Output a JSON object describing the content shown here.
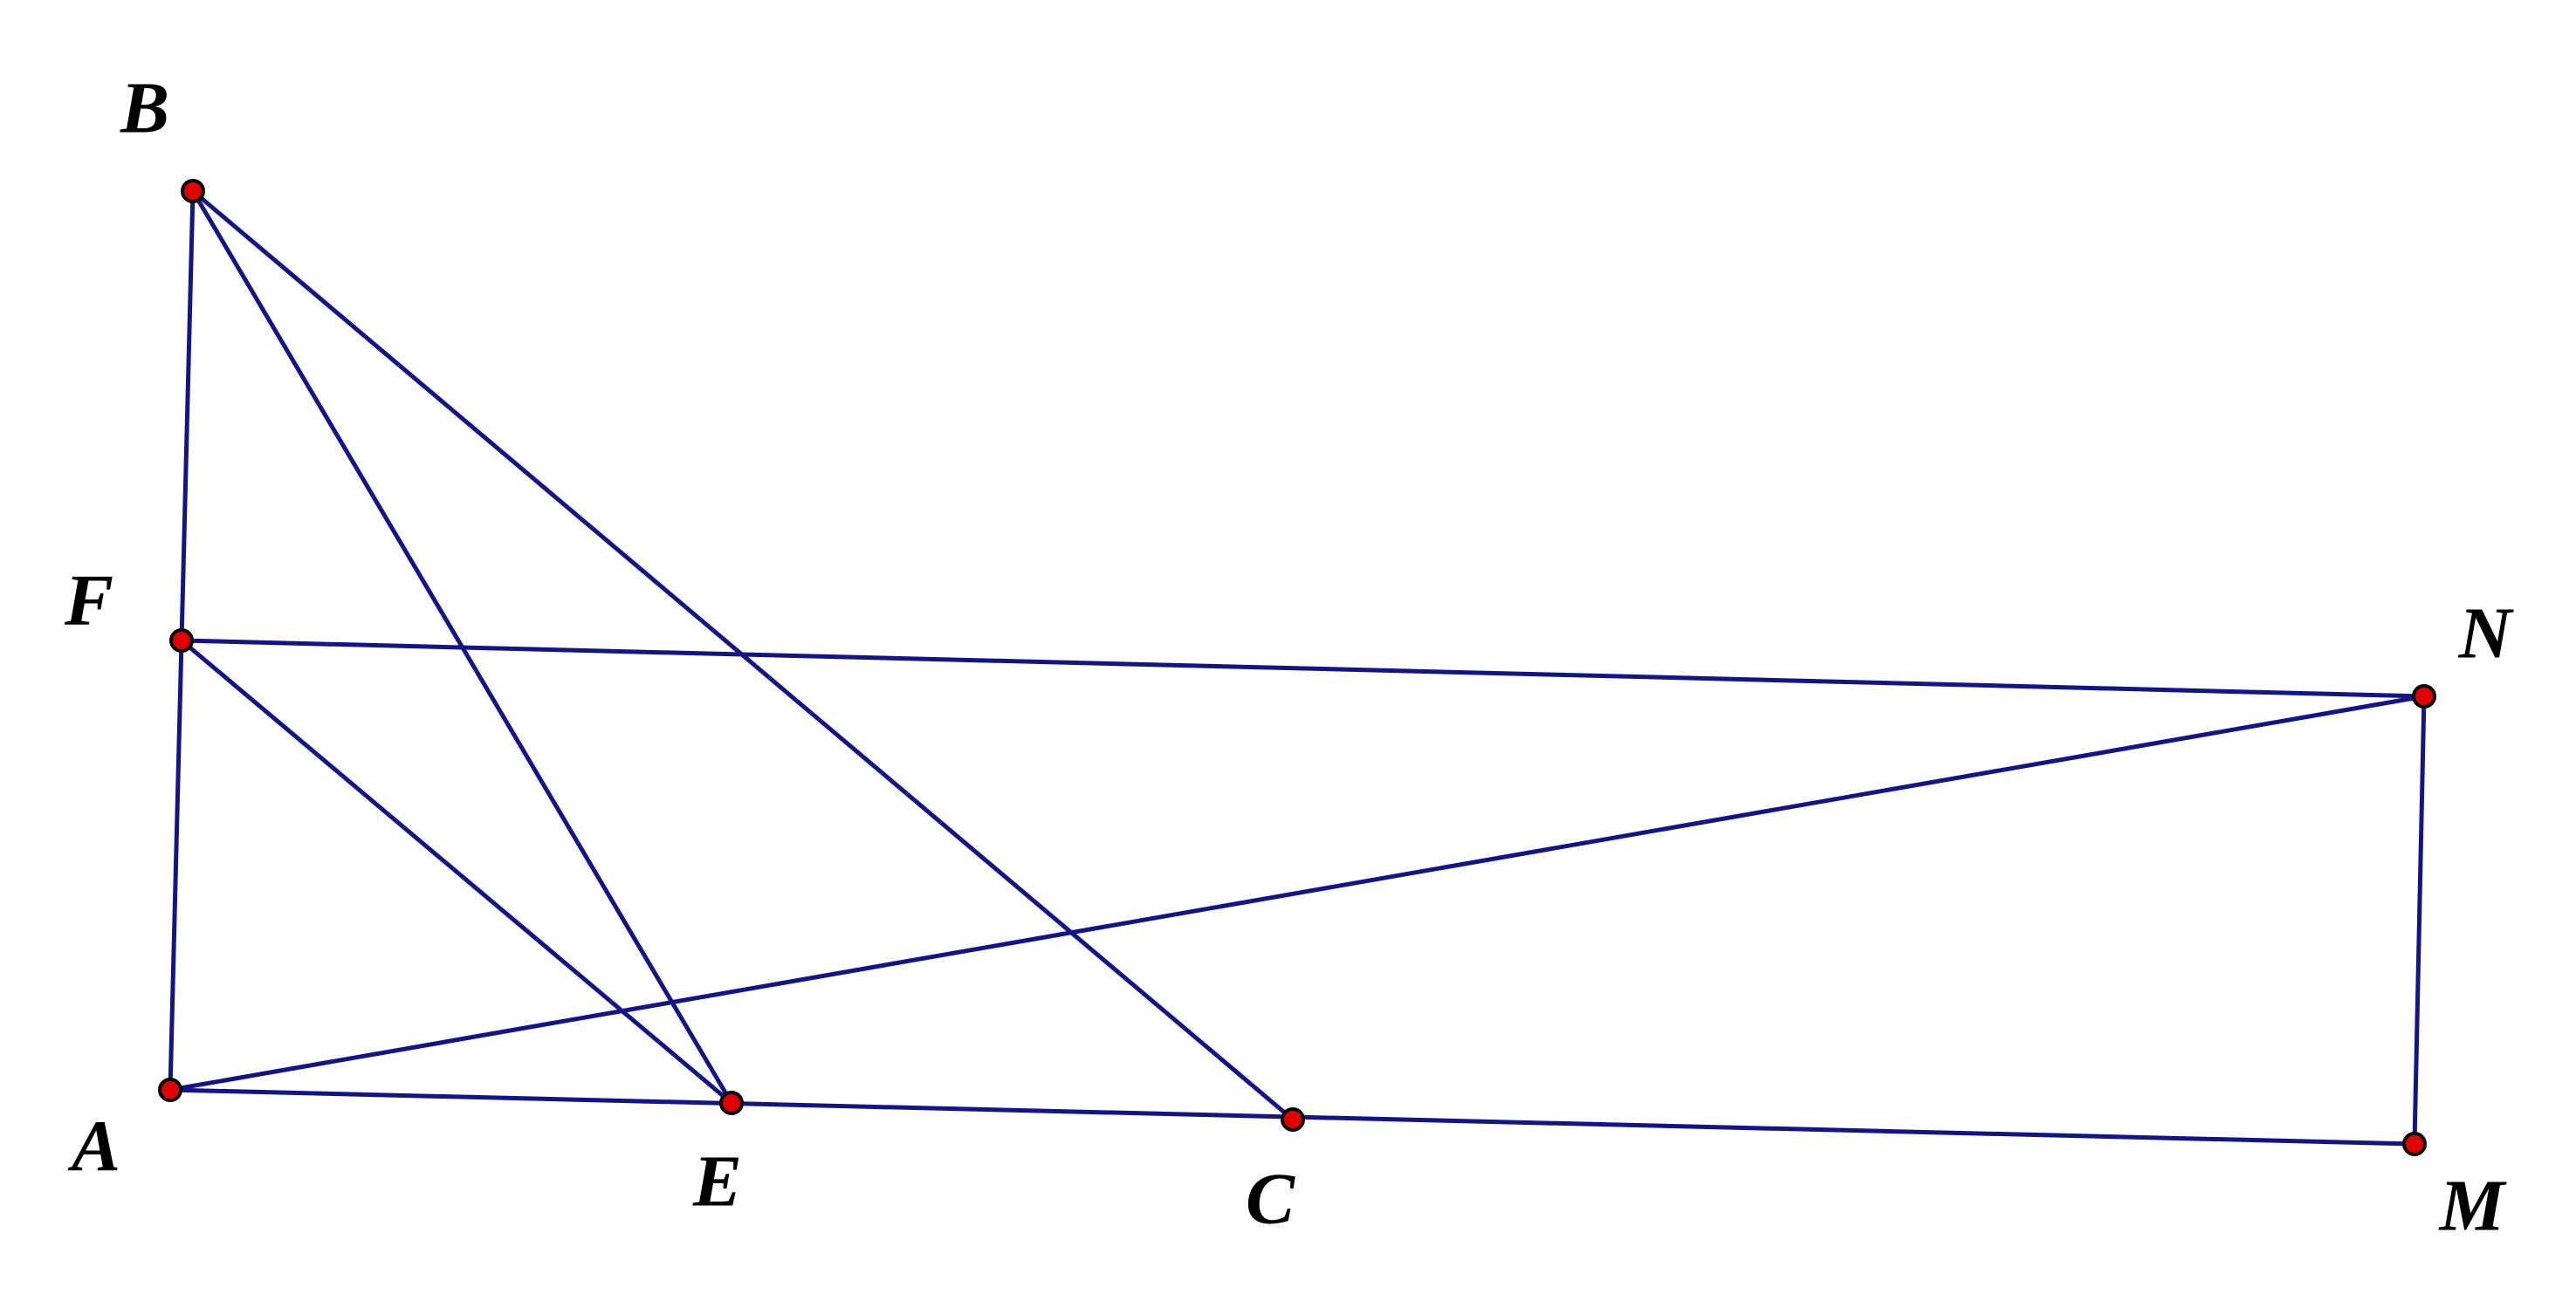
{
  "points": [
    {
      "label": "B"
    },
    {
      "label": "F"
    },
    {
      "label": "A"
    },
    {
      "label": "E"
    },
    {
      "label": "C"
    },
    {
      "label": "M"
    },
    {
      "label": "N"
    }
  ]
}
